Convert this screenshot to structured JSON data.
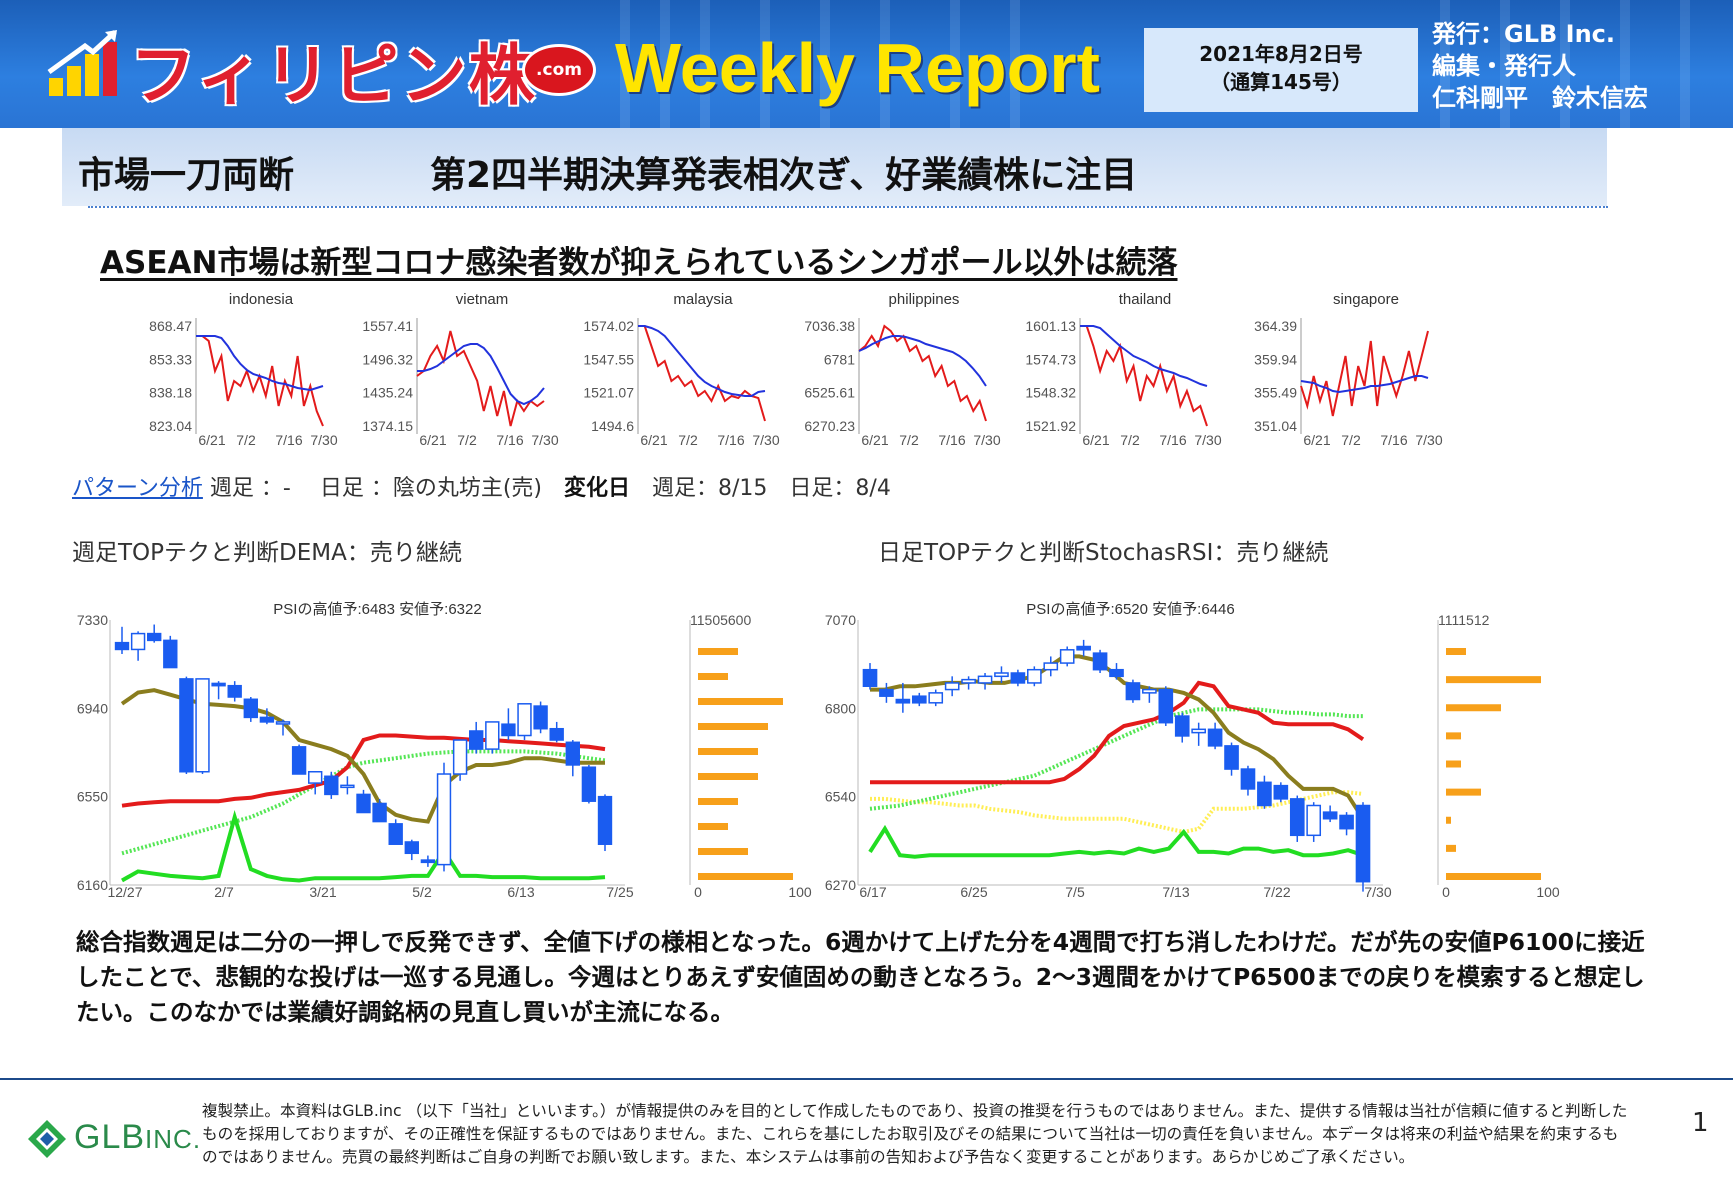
{
  "header": {
    "logo_text": "フィリピン株",
    "logo_dotcom": ".com",
    "report_title": "Weekly Report",
    "date_line1": "2021年8月2日号",
    "date_line2": "（通算145号）",
    "publisher_line1": "発行：GLB Inc.",
    "publisher_line2": "編集・発行人",
    "publisher_line3": "仁科剛平　鈴木信宏"
  },
  "title": {
    "left": "市場一刀両断",
    "right": "第2四半期決算発表相次ぎ、好業績株に注目"
  },
  "subheading": "ASEAN市場は新型コロナ感染者数が抑えられているシンガポール以外は続落",
  "mini_charts": [
    {
      "name": "indonesia",
      "ticks": [
        "868.47",
        "853.33",
        "838.18",
        "823.04"
      ],
      "x": [
        "6/21",
        "7/2",
        "7/16",
        "7/30"
      ],
      "red": [
        0.1,
        0.1,
        0.15,
        0.45,
        0.3,
        0.75,
        0.55,
        0.6,
        0.45,
        0.65,
        0.5,
        0.7,
        0.4,
        0.8,
        0.55,
        0.7,
        0.3,
        0.8,
        0.6,
        0.85,
        1.0
      ],
      "blue": [
        0.1,
        0.1,
        0.1,
        0.1,
        0.12,
        0.2,
        0.3,
        0.38,
        0.44,
        0.48,
        0.5,
        0.52,
        0.55,
        0.57,
        0.58,
        0.6,
        0.62,
        0.63,
        0.64,
        0.62,
        0.6
      ]
    },
    {
      "name": "vietnam",
      "ticks": [
        "1557.41",
        "1496.32",
        "1435.24",
        "1374.15"
      ],
      "x": [
        "6/21",
        "7/2",
        "7/16",
        "7/30"
      ],
      "red": [
        0.5,
        0.45,
        0.3,
        0.2,
        0.35,
        0.05,
        0.3,
        0.25,
        0.4,
        0.55,
        0.85,
        0.6,
        0.9,
        0.65,
        1.0,
        0.75,
        0.85,
        0.75,
        0.8,
        0.75
      ],
      "blue": [
        0.45,
        0.45,
        0.43,
        0.4,
        0.35,
        0.3,
        0.25,
        0.2,
        0.18,
        0.18,
        0.22,
        0.3,
        0.42,
        0.55,
        0.68,
        0.75,
        0.78,
        0.75,
        0.7,
        0.62
      ]
    },
    {
      "name": "malaysia",
      "ticks": [
        "1574.02",
        "1547.55",
        "1521.07",
        "1494.6"
      ],
      "x": [
        "6/21",
        "7/2",
        "7/16",
        "7/30"
      ],
      "red": [
        0.0,
        0.0,
        0.2,
        0.4,
        0.35,
        0.55,
        0.5,
        0.6,
        0.55,
        0.7,
        0.65,
        0.75,
        0.6,
        0.75,
        0.7,
        0.72,
        0.65,
        0.7,
        0.72,
        0.95
      ],
      "blue": [
        0.0,
        0.0,
        0.02,
        0.05,
        0.1,
        0.18,
        0.26,
        0.34,
        0.42,
        0.5,
        0.56,
        0.6,
        0.63,
        0.66,
        0.68,
        0.69,
        0.7,
        0.7,
        0.66,
        0.65
      ]
    },
    {
      "name": "philippines",
      "ticks": [
        "7036.38",
        "6781",
        "6525.61",
        "6270.23"
      ],
      "x": [
        "6/21",
        "7/2",
        "7/16",
        "7/30"
      ],
      "red": [
        0.25,
        0.2,
        0.1,
        0.2,
        0.0,
        0.05,
        0.15,
        0.1,
        0.25,
        0.2,
        0.35,
        0.3,
        0.5,
        0.4,
        0.6,
        0.55,
        0.75,
        0.7,
        0.85,
        0.75,
        0.95
      ],
      "blue": [
        0.25,
        0.22,
        0.18,
        0.15,
        0.12,
        0.1,
        0.1,
        0.11,
        0.13,
        0.15,
        0.18,
        0.2,
        0.22,
        0.24,
        0.26,
        0.3,
        0.35,
        0.42,
        0.5,
        0.6
      ]
    },
    {
      "name": "thailand",
      "ticks": [
        "1601.13",
        "1574.73",
        "1548.32",
        "1521.92"
      ],
      "x": [
        "6/21",
        "7/2",
        "7/16",
        "7/30"
      ],
      "red": [
        0.0,
        0.0,
        0.2,
        0.45,
        0.25,
        0.35,
        0.2,
        0.55,
        0.4,
        0.75,
        0.5,
        0.6,
        0.4,
        0.65,
        0.5,
        0.8,
        0.65,
        0.85,
        0.8,
        1.0
      ],
      "blue": [
        0.0,
        0.0,
        0.0,
        0.02,
        0.08,
        0.14,
        0.2,
        0.25,
        0.3,
        0.33,
        0.36,
        0.4,
        0.43,
        0.45,
        0.47,
        0.5,
        0.52,
        0.55,
        0.58,
        0.6
      ]
    },
    {
      "name": "singapore",
      "ticks": [
        "364.39",
        "359.94",
        "355.49",
        "351.04"
      ],
      "x": [
        "6/21",
        "7/2",
        "7/16",
        "7/30"
      ],
      "red": [
        0.6,
        0.8,
        0.5,
        0.75,
        0.55,
        0.9,
        0.6,
        0.3,
        0.8,
        0.4,
        0.6,
        0.15,
        0.8,
        0.3,
        0.5,
        0.7,
        0.5,
        0.25,
        0.55,
        0.3,
        0.05
      ],
      "blue": [
        0.55,
        0.56,
        0.57,
        0.6,
        0.62,
        0.65,
        0.66,
        0.65,
        0.64,
        0.63,
        0.62,
        0.6,
        0.6,
        0.59,
        0.58,
        0.56,
        0.54,
        0.52,
        0.5,
        0.5,
        0.52
      ]
    }
  ],
  "pattern": {
    "link": "パターン分析",
    "weekly": " 週足 ：-　 日足 ：陰の丸坊主(売)　",
    "change_label": "変化日",
    "change_values": "　週足：8/15　日足：8/4"
  },
  "tech_left": "週足TOPテクと判断DEMA：売り継続",
  "tech_right": "日足TOPテクと判断StochasRSI：売り継続",
  "weekly_chart": {
    "title": "PSIの高値予:6483 安値予:6322",
    "yticks": [
      "7330",
      "6940",
      "6550",
      "6160"
    ],
    "xticks": [
      "12/27",
      "2/7",
      "3/21",
      "5/2",
      "6/13",
      "7/25"
    ],
    "vol_max": "11505600",
    "vol_ticks": [
      "0",
      "100"
    ],
    "ylim": [
      6160,
      7330
    ],
    "candles": [
      [
        7230,
        7300,
        7180,
        7200
      ],
      [
        7200,
        7280,
        7150,
        7270
      ],
      [
        7270,
        7310,
        7230,
        7240
      ],
      [
        7240,
        7260,
        7120,
        7120
      ],
      [
        7070,
        7080,
        6650,
        6660
      ],
      [
        6660,
        7070,
        6650,
        7070
      ],
      [
        7050,
        7060,
        6980,
        7040
      ],
      [
        7040,
        7060,
        6970,
        6990
      ],
      [
        6980,
        6990,
        6880,
        6900
      ],
      [
        6900,
        6940,
        6870,
        6880
      ],
      [
        6880,
        6890,
        6820,
        6880
      ],
      [
        6770,
        6780,
        6650,
        6650
      ],
      [
        6610,
        6660,
        6560,
        6660
      ],
      [
        6640,
        6660,
        6540,
        6560
      ],
      [
        6600,
        6640,
        6560,
        6600
      ],
      [
        6560,
        6580,
        6480,
        6480
      ],
      [
        6520,
        6540,
        6440,
        6440
      ],
      [
        6430,
        6450,
        6340,
        6340
      ],
      [
        6350,
        6360,
        6270,
        6300
      ],
      [
        6270,
        6290,
        6240,
        6260
      ],
      [
        6250,
        6700,
        6220,
        6650
      ],
      [
        6650,
        6800,
        6620,
        6800
      ],
      [
        6840,
        6880,
        6740,
        6760
      ],
      [
        6760,
        6880,
        6740,
        6880
      ],
      [
        6870,
        6940,
        6800,
        6820
      ],
      [
        6820,
        6960,
        6800,
        6960
      ],
      [
        6950,
        6970,
        6830,
        6850
      ],
      [
        6850,
        6880,
        6790,
        6800
      ],
      [
        6790,
        6800,
        6640,
        6690
      ],
      [
        6680,
        6690,
        6520,
        6530
      ],
      [
        6550,
        6560,
        6310,
        6340
      ]
    ],
    "vol": [
      0.4,
      0.3,
      0.85,
      0.7,
      0.6,
      0.6,
      0.4,
      0.3,
      0.5,
      0.95
    ],
    "red": [
      6510,
      6520,
      6525,
      6530,
      6530,
      6530,
      6530,
      6540,
      6545,
      6560,
      6570,
      6580,
      6600,
      6620,
      6680,
      6800,
      6820,
      6820,
      6815,
      6810,
      6810,
      6805,
      6800,
      6800,
      6795,
      6790,
      6785,
      6780,
      6775,
      6770,
      6760
    ],
    "olive": [
      6960,
      7010,
      7020,
      7000,
      6980,
      6960,
      6955,
      6950,
      6940,
      6920,
      6880,
      6800,
      6780,
      6760,
      6730,
      6650,
      6520,
      6470,
      6450,
      6440,
      6600,
      6660,
      6690,
      6690,
      6700,
      6720,
      6720,
      6710,
      6700,
      6700,
      6700
    ],
    "green": [
      6180,
      6220,
      6210,
      6200,
      6195,
      6190,
      6200,
      6460,
      6230,
      6200,
      6185,
      6180,
      6190,
      6190,
      6190,
      6190,
      6190,
      6195,
      6200,
      6200,
      6310,
      6200,
      6200,
      6195,
      6195,
      6195,
      6190,
      6190,
      6190,
      6190,
      6195
    ],
    "green_dot": [
      6300,
      6320,
      6340,
      6360,
      6380,
      6400,
      6420,
      6440,
      6460,
      6490,
      6520,
      6560,
      6600,
      6640,
      6680,
      6700,
      6710,
      6720,
      6730,
      6740,
      6745,
      6750,
      6750,
      6750,
      6750,
      6750,
      6745,
      6740,
      6730,
      6720,
      6710
    ]
  },
  "daily_chart": {
    "title": "PSIの高値予:6520 安値予:6446",
    "yticks": [
      "7070",
      "6800",
      "6540",
      "6270"
    ],
    "xticks": [
      "6/17",
      "6/25",
      "7/5",
      "7/13",
      "7/22",
      "7/30"
    ],
    "vol_max": "1111512",
    "vol_ticks": [
      "0",
      "100"
    ],
    "ylim": [
      6270,
      7070
    ],
    "candles": [
      [
        6920,
        6940,
        6860,
        6870
      ],
      [
        6860,
        6880,
        6820,
        6840
      ],
      [
        6830,
        6880,
        6790,
        6820
      ],
      [
        6840,
        6850,
        6810,
        6820
      ],
      [
        6820,
        6860,
        6810,
        6850
      ],
      [
        6860,
        6900,
        6840,
        6880
      ],
      [
        6880,
        6900,
        6860,
        6890
      ],
      [
        6880,
        6910,
        6860,
        6900
      ],
      [
        6900,
        6930,
        6880,
        6910
      ],
      [
        6910,
        6920,
        6870,
        6880
      ],
      [
        6880,
        6930,
        6870,
        6920
      ],
      [
        6920,
        6960,
        6900,
        6940
      ],
      [
        6940,
        6990,
        6930,
        6980
      ],
      [
        6990,
        7010,
        6960,
        6980
      ],
      [
        6970,
        6980,
        6910,
        6920
      ],
      [
        6920,
        6940,
        6890,
        6900
      ],
      [
        6880,
        6890,
        6820,
        6830
      ],
      [
        6850,
        6870,
        6820,
        6860
      ],
      [
        6860,
        6870,
        6750,
        6760
      ],
      [
        6780,
        6790,
        6700,
        6720
      ],
      [
        6730,
        6760,
        6690,
        6740
      ],
      [
        6740,
        6760,
        6680,
        6690
      ],
      [
        6690,
        6700,
        6600,
        6620
      ],
      [
        6620,
        6630,
        6540,
        6560
      ],
      [
        6580,
        6600,
        6500,
        6510
      ],
      [
        6570,
        6580,
        6520,
        6530
      ],
      [
        6530,
        6540,
        6400,
        6420
      ],
      [
        6420,
        6520,
        6400,
        6510
      ],
      [
        6490,
        6510,
        6460,
        6470
      ],
      [
        6480,
        6490,
        6420,
        6440
      ],
      [
        6510,
        6520,
        6250,
        6280
      ]
    ],
    "vol": [
      0.2,
      0.95,
      0.55,
      0.15,
      0.15,
      0.35,
      0.05,
      0.1,
      0.95
    ],
    "red": [
      6580,
      6580,
      6580,
      6580,
      6580,
      6580,
      6580,
      6580,
      6580,
      6580,
      6580,
      6580,
      6580,
      6590,
      6620,
      6660,
      6720,
      6750,
      6760,
      6770,
      6790,
      6820,
      6880,
      6870,
      6810,
      6800,
      6790,
      6760,
      6755,
      6755,
      6755,
      6755,
      6740,
      6710
    ],
    "olive": [
      6860,
      6860,
      6870,
      6870,
      6875,
      6880,
      6880,
      6885,
      6880,
      6880,
      6890,
      6900,
      6930,
      6960,
      6960,
      6950,
      6920,
      6880,
      6870,
      6860,
      6860,
      6850,
      6830,
      6790,
      6730,
      6700,
      6680,
      6650,
      6600,
      6560,
      6560,
      6560,
      6540,
      6470
    ],
    "green": [
      6370,
      6440,
      6360,
      6355,
      6360,
      6360,
      6360,
      6360,
      6360,
      6360,
      6360,
      6360,
      6360,
      6365,
      6370,
      6365,
      6370,
      6365,
      6380,
      6370,
      6380,
      6430,
      6370,
      6370,
      6365,
      6380,
      6380,
      6370,
      6375,
      6360,
      6360,
      6365,
      6375,
      6360
    ],
    "green_dot": [
      6500,
      6505,
      6510,
      6520,
      6530,
      6540,
      6550,
      6560,
      6570,
      6580,
      6590,
      6600,
      6620,
      6640,
      6660,
      6680,
      6700,
      6720,
      6740,
      6760,
      6780,
      6790,
      6800,
      6800,
      6800,
      6800,
      6800,
      6795,
      6790,
      6790,
      6785,
      6785,
      6780,
      6780
    ],
    "yellow_dot": [
      6530,
      6530,
      6525,
      6520,
      6520,
      6515,
      6510,
      6510,
      6500,
      6495,
      6490,
      6480,
      6475,
      6470,
      6470,
      6470,
      6470,
      6470,
      6460,
      6450,
      6440,
      6430,
      6440,
      6500,
      6500,
      6500,
      6505,
      6510,
      6520,
      6530,
      6540,
      6550,
      6550,
      6545
    ]
  },
  "body_text": "総合指数週足は二分の一押しで反発できず、全値下げの様相となった。6週かけて上げた分を4週間で打ち消したわけだ。だが先の安値P6100に接近したことで、悲観的な投げは一巡する見通し。今週はとりあえず安値固めの動きとなろう。2～3週間をかけてP6500までの戻りを模索すると想定したい。このなかでは業績好調銘柄の見直し買いが主流になる。",
  "footer": {
    "glb_name": "GLB",
    "glb_suffix": "INC.",
    "disclaimer": "複製禁止。本資料はGLB.inc （以下「当社」といいます。）が情報提供のみを目的として作成したものであり、投資の推奨を行うものではありません。また、提供する情報は当社が信頼に値すると判断したものを採用しておりますが、その正確性を保証するものではありません。また、これらを基にしたお取引及びその結果について当社は一切の責任を負いません。本データは将来の利益や結果を約束するものではありません。売買の最終判断はご自身の判断でお願い致します。また、本システムは事前の告知および予告なく変更することがあります。あらかじめご了承ください。",
    "page_number": "1"
  },
  "colors": {
    "header_blue": "#2a74d4",
    "logo_red": "#e0202f",
    "weekly_yellow": "#ffe500",
    "candle_blue": "#1a5cf0",
    "ma_red": "#e31b1b",
    "ma_olive": "#8a7d1e",
    "ma_green": "#22dd22",
    "volume_orange": "#f7a01a"
  }
}
